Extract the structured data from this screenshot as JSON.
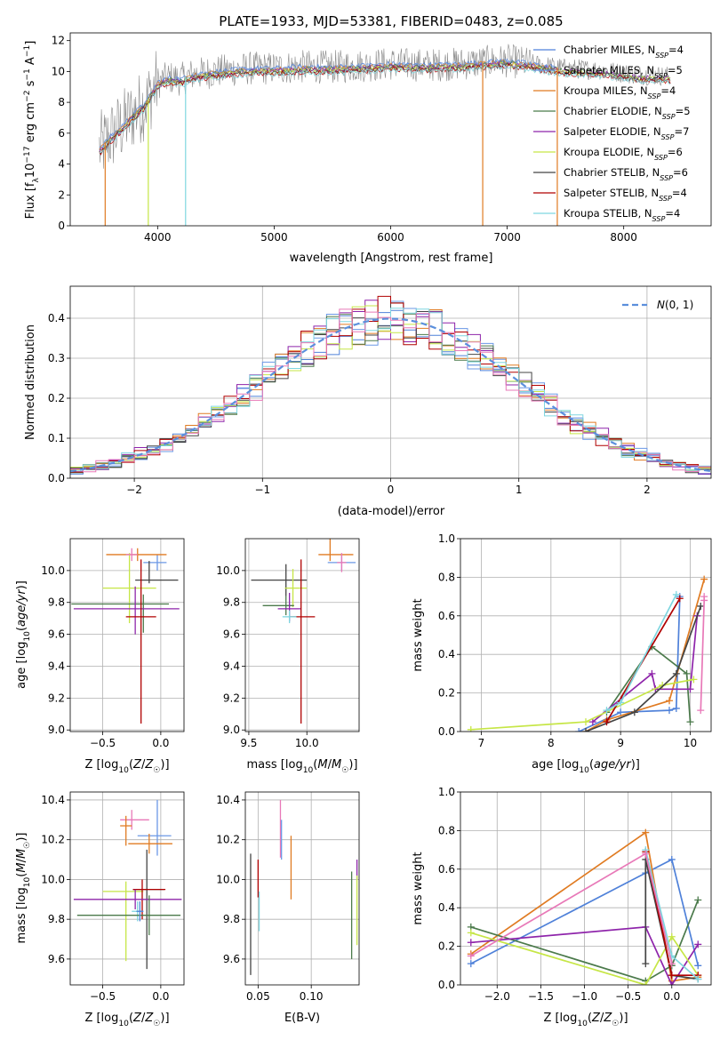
{
  "figure": {
    "title": "PLATE=1933, MJD=53381, FIBERID=0483, z=0.085"
  },
  "colors": {
    "chabrier_miles": "#4f81d9",
    "salpeter_miles": "#6b98e6",
    "kroupa_miles": "#e07b22",
    "chabrier_elodie": "#4b7a4b",
    "salpeter_elodie": "#8e24aa",
    "kroupa_elodie": "#c6e646",
    "chabrier_stelib": "#444444",
    "salpeter_stelib": "#b00000",
    "kroupa_stelib": "#7fd6e0",
    "pink": "#e879b8",
    "data_grey": "#8a8a8a",
    "normal_dash": "#5b8fdc"
  },
  "chart_data": [
    {
      "id": "spectrum",
      "type": "line",
      "xlabel": "wavelength [Angstrom, rest frame]",
      "ylabel": "Flux [f_λ 10^-17 erg cm^-2 s^-1 A^-1]",
      "xlim": [
        3250,
        8750
      ],
      "ylim": [
        0,
        12.5
      ],
      "xticks": [
        4000,
        5000,
        6000,
        7000,
        8000
      ],
      "yticks": [
        0,
        2,
        4,
        6,
        8,
        10,
        12
      ],
      "grid": false,
      "legend_position": "right",
      "legend": [
        {
          "label": "Chabrier MILES, N_SSP=4",
          "color_key": "chabrier_miles"
        },
        {
          "label": "Salpeter MILES, N_SSP=5",
          "color_key": "salpeter_miles"
        },
        {
          "label": "Kroupa MILES, N_SSP=4",
          "color_key": "kroupa_miles"
        },
        {
          "label": "Chabrier ELODIE, N_SSP=5",
          "color_key": "chabrier_elodie"
        },
        {
          "label": "Salpeter ELODIE, N_SSP=7",
          "color_key": "salpeter_elodie"
        },
        {
          "label": "Kroupa ELODIE, N_SSP=6",
          "color_key": "kroupa_elodie"
        },
        {
          "label": "Chabrier STELIB, N_SSP=6",
          "color_key": "chabrier_stelib"
        },
        {
          "label": "Salpeter STELIB, N_SSP=4",
          "color_key": "salpeter_stelib"
        },
        {
          "label": "Kroupa STELIB, N_SSP=4",
          "color_key": "kroupa_stelib"
        }
      ],
      "data_envelope": {
        "x": [
          3500,
          3600,
          3700,
          3800,
          3900,
          4000,
          4100,
          4200,
          4300,
          4500,
          4800,
          5000,
          5200,
          5500,
          5800,
          6000,
          6300,
          6600,
          7000,
          7300,
          7500,
          7800,
          8100,
          8400
        ],
        "y": [
          5.0,
          5.8,
          6.5,
          7.3,
          8.0,
          9.3,
          9.6,
          9.5,
          9.8,
          10.0,
          10.2,
          10.2,
          10.3,
          10.3,
          10.4,
          10.5,
          10.4,
          10.5,
          10.7,
          10.4,
          10.2,
          10.1,
          9.8,
          9.7
        ],
        "noise_amplitude": 1.1
      },
      "drops": [
        {
          "x": 3550,
          "color_key": "kroupa_miles"
        },
        {
          "x": 3920,
          "color_key": "kroupa_elodie"
        },
        {
          "x": 4240,
          "color_key": "kroupa_stelib"
        },
        {
          "x": 6790,
          "color_key": "kroupa_miles"
        },
        {
          "x": 7430,
          "color_key": "kroupa_miles"
        }
      ]
    },
    {
      "id": "residuals",
      "type": "histogram",
      "xlabel": "(data-model)/error",
      "ylabel": "Normed distribution",
      "xlim": [
        -2.5,
        2.5
      ],
      "ylim": [
        0,
        0.48
      ],
      "xticks": [
        -2,
        -1,
        0,
        1,
        2
      ],
      "yticks": [
        0.0,
        0.1,
        0.2,
        0.3,
        0.4
      ],
      "grid": true,
      "legend_position": "top-right",
      "legend": [
        {
          "label": "N(0, 1)",
          "style": "dashed",
          "color_key": "normal_dash"
        }
      ],
      "bin_width": 0.1,
      "gaussian": {
        "mean": 0,
        "sigma": 1
      }
    },
    {
      "id": "age_vs_Z",
      "type": "scatter",
      "xlabel": "Z [log10(Z/Z☉)]",
      "ylabel": "age  [log10(age/yr)]",
      "xlim": [
        -0.78,
        0.2
      ],
      "ylim": [
        8.99,
        10.2
      ],
      "xticks": [
        -0.5,
        0.0
      ],
      "yticks": [
        9.0,
        9.2,
        9.4,
        9.6,
        9.8,
        10.0
      ],
      "grid": true,
      "points": [
        {
          "x": -0.03,
          "y": 10.05,
          "xerr": [
            0.12,
            0.08
          ],
          "yerr": [
            0.05,
            0.05
          ],
          "color_key": "salpeter_miles"
        },
        {
          "x": -0.2,
          "y": 10.1,
          "xerr": [
            0.27,
            0.25
          ],
          "yerr": [
            0.04,
            0.04
          ],
          "color_key": "kroupa_miles"
        },
        {
          "x": -0.1,
          "y": 9.94,
          "xerr": [
            0.12,
            0.25
          ],
          "yerr": [
            0.02,
            0.12
          ],
          "color_key": "chabrier_stelib"
        },
        {
          "x": -0.27,
          "y": 9.89,
          "xerr": [
            0.23,
            0.23
          ],
          "yerr": [
            0.22,
            0.22
          ],
          "color_key": "kroupa_elodie"
        },
        {
          "x": -0.15,
          "y": 9.79,
          "xerr": [
            0.62,
            0.22
          ],
          "yerr": [
            0.18,
            0.06
          ],
          "color_key": "chabrier_elodie"
        },
        {
          "x": -0.22,
          "y": 9.76,
          "xerr": [
            0.53,
            0.38
          ],
          "yerr": [
            0.16,
            0.14
          ],
          "color_key": "salpeter_elodie"
        },
        {
          "x": -0.17,
          "y": 9.71,
          "xerr": [
            0.13,
            0.13
          ],
          "yerr": [
            0.67,
            0.36
          ],
          "color_key": "salpeter_stelib"
        },
        {
          "x": -0.25,
          "y": 10.1,
          "xerr": [
            0.05,
            0.05
          ],
          "yerr": [
            0.04,
            0.04
          ],
          "color_key": "pink"
        }
      ]
    },
    {
      "id": "age_vs_mass",
      "type": "scatter",
      "xlabel": "mass [log10(M/M☉)]",
      "ylabel": "",
      "xlim": [
        9.47,
        10.45
      ],
      "ylim": [
        8.99,
        10.2
      ],
      "xticks": [
        9.5,
        10.0
      ],
      "yticks": [
        9.0,
        9.2,
        9.4,
        9.6,
        9.8,
        10.0
      ],
      "grid": true,
      "points": [
        {
          "x": 10.3,
          "y": 10.05,
          "xerr": [
            0.12,
            0.12
          ],
          "yerr": [
            0.05,
            0.05
          ],
          "color_key": "salpeter_miles"
        },
        {
          "x": 10.2,
          "y": 10.1,
          "xerr": [
            0.1,
            0.2
          ],
          "yerr": [
            0.04,
            0.1
          ],
          "color_key": "kroupa_miles"
        },
        {
          "x": 9.82,
          "y": 9.94,
          "xerr": [
            0.3,
            0.18
          ],
          "yerr": [
            0.1,
            0.1
          ],
          "color_key": "chabrier_stelib"
        },
        {
          "x": 9.88,
          "y": 9.89,
          "xerr": [
            0.07,
            0.12
          ],
          "yerr": [
            0.12,
            0.12
          ],
          "color_key": "kroupa_elodie"
        },
        {
          "x": 9.82,
          "y": 9.78,
          "xerr": [
            0.2,
            0.07
          ],
          "yerr": [
            0.06,
            0.06
          ],
          "color_key": "chabrier_elodie"
        },
        {
          "x": 9.85,
          "y": 9.76,
          "xerr": [
            0.1,
            0.1
          ],
          "yerr": [
            0.08,
            0.1
          ],
          "color_key": "salpeter_elodie"
        },
        {
          "x": 9.95,
          "y": 9.71,
          "xerr": [
            0.1,
            0.12
          ],
          "yerr": [
            0.67,
            0.36
          ],
          "color_key": "salpeter_stelib"
        },
        {
          "x": 9.85,
          "y": 9.71,
          "xerr": [
            0.06,
            0.06
          ],
          "yerr": [
            0.04,
            0.04
          ],
          "color_key": "kroupa_stelib"
        },
        {
          "x": 10.3,
          "y": 10.05,
          "xerr": [
            0.04,
            0.04
          ],
          "yerr": [
            0.06,
            0.06
          ],
          "color_key": "pink"
        }
      ]
    },
    {
      "id": "mass_weight_vs_age",
      "type": "line",
      "xlabel": "age  [log10(age/yr)]",
      "ylabel": "mass weight",
      "xlim": [
        6.7,
        10.3
      ],
      "ylim": [
        0,
        1.0
      ],
      "xticks": [
        7,
        8,
        9,
        10
      ],
      "yticks": [
        0.0,
        0.2,
        0.4,
        0.6,
        0.8,
        1.0
      ],
      "grid": true,
      "series": [
        {
          "color_key": "chabrier_miles",
          "x": [
            8.4,
            9.0,
            9.7,
            9.8,
            9.85
          ],
          "y": [
            0.0,
            0.1,
            0.11,
            0.12,
            0.7
          ]
        },
        {
          "color_key": "kroupa_miles",
          "x": [
            8.5,
            8.8,
            9.7,
            10.2
          ],
          "y": [
            0.0,
            0.06,
            0.16,
            0.79
          ]
        },
        {
          "color_key": "chabrier_elodie",
          "x": [
            8.8,
            9.45,
            9.95,
            10.0
          ],
          "y": [
            0.1,
            0.44,
            0.3,
            0.05
          ]
        },
        {
          "color_key": "salpeter_elodie",
          "x": [
            8.6,
            9.45,
            9.5,
            10.0,
            10.1
          ],
          "y": [
            0.05,
            0.3,
            0.22,
            0.22,
            0.6
          ]
        },
        {
          "color_key": "kroupa_elodie",
          "x": [
            6.85,
            8.5,
            9.6,
            10.05
          ],
          "y": [
            0.01,
            0.05,
            0.24,
            0.27
          ]
        },
        {
          "color_key": "chabrier_stelib",
          "x": [
            8.5,
            9.2,
            9.8,
            10.15
          ],
          "y": [
            0.0,
            0.1,
            0.3,
            0.65
          ]
        },
        {
          "color_key": "salpeter_stelib",
          "x": [
            8.8,
            9.85
          ],
          "y": [
            0.05,
            0.69
          ]
        },
        {
          "color_key": "kroupa_stelib",
          "x": [
            8.8,
            9.0,
            9.8
          ],
          "y": [
            0.11,
            0.15,
            0.71
          ]
        },
        {
          "color_key": "pink",
          "x": [
            10.15,
            10.2,
            10.2
          ],
          "y": [
            0.11,
            0.68,
            0.7
          ]
        }
      ]
    },
    {
      "id": "mass_vs_Z",
      "type": "scatter",
      "xlabel": "Z [log10(Z/Z☉)]",
      "ylabel": "mass [log10(M/M☉)]",
      "xlim": [
        -0.78,
        0.2
      ],
      "ylim": [
        9.47,
        10.44
      ],
      "xticks": [
        -0.5,
        0.0
      ],
      "yticks": [
        9.6,
        9.8,
        10.0,
        10.2,
        10.4
      ],
      "grid": true,
      "points": [
        {
          "x": -0.25,
          "y": 10.3,
          "xerr": [
            0.1,
            0.15
          ],
          "yerr": [
            0.05,
            0.05
          ],
          "color_key": "pink"
        },
        {
          "x": -0.03,
          "y": 10.22,
          "xerr": [
            0.17,
            0.12
          ],
          "yerr": [
            0.1,
            0.18
          ],
          "color_key": "salpeter_miles"
        },
        {
          "x": -0.3,
          "y": 10.27,
          "xerr": [
            0.05,
            0.05
          ],
          "yerr": [
            0.1,
            0.05
          ],
          "color_key": "kroupa_miles"
        },
        {
          "x": -0.1,
          "y": 10.18,
          "xerr": [
            0.18,
            0.2
          ],
          "yerr": [
            0.05,
            0.05
          ],
          "color_key": "kroupa_miles"
        },
        {
          "x": -0.3,
          "y": 9.94,
          "xerr": [
            0.2,
            0.15
          ],
          "yerr": [
            0.35,
            0.05
          ],
          "color_key": "kroupa_elodie"
        },
        {
          "x": -0.12,
          "y": 9.95,
          "xerr": [
            0.12,
            0.15
          ],
          "yerr": [
            0.4,
            0.2
          ],
          "color_key": "chabrier_stelib"
        },
        {
          "x": -0.16,
          "y": 9.95,
          "xerr": [
            0.08,
            0.2
          ],
          "yerr": [
            0.15,
            0.05
          ],
          "color_key": "salpeter_stelib"
        },
        {
          "x": -0.22,
          "y": 9.9,
          "xerr": [
            0.53,
            0.4
          ],
          "yerr": [
            0.05,
            0.05
          ],
          "color_key": "salpeter_elodie"
        },
        {
          "x": -0.2,
          "y": 9.84,
          "xerr": [
            0.05,
            0.05
          ],
          "yerr": [
            0.05,
            0.05
          ],
          "color_key": "kroupa_stelib"
        },
        {
          "x": -0.1,
          "y": 9.82,
          "xerr": [
            0.62,
            0.27
          ],
          "yerr": [
            0.1,
            0.1
          ],
          "color_key": "chabrier_elodie"
        },
        {
          "x": -0.18,
          "y": 9.84,
          "xerr": [
            0.03,
            0.03
          ],
          "yerr": [
            0.05,
            0.05
          ],
          "color_key": "chabrier_miles"
        }
      ]
    },
    {
      "id": "mass_vs_ebv",
      "type": "scatter",
      "xlabel": "E(B-V)",
      "ylabel": "",
      "xlim": [
        0.038,
        0.145
      ],
      "ylim": [
        9.47,
        10.44
      ],
      "xticks": [
        0.05,
        0.1
      ],
      "yticks": [
        9.6,
        9.8,
        10.0,
        10.2,
        10.4
      ],
      "grid": true,
      "points": [
        {
          "x": 0.043,
          "y": 9.95,
          "xerr": [
            0,
            0
          ],
          "yerr": [
            0.43,
            0.18
          ],
          "color_key": "chabrier_stelib"
        },
        {
          "x": 0.05,
          "y": 9.97,
          "xerr": [
            0,
            0
          ],
          "yerr": [
            0.06,
            0.13
          ],
          "color_key": "salpeter_stelib"
        },
        {
          "x": 0.051,
          "y": 9.84,
          "xerr": [
            0,
            0
          ],
          "yerr": [
            0.1,
            0.1
          ],
          "color_key": "kroupa_stelib"
        },
        {
          "x": 0.071,
          "y": 10.3,
          "xerr": [
            0,
            0
          ],
          "yerr": [
            0.19,
            0.1
          ],
          "color_key": "pink"
        },
        {
          "x": 0.072,
          "y": 10.2,
          "xerr": [
            0,
            0
          ],
          "yerr": [
            0.1,
            0.1
          ],
          "color_key": "salpeter_miles"
        },
        {
          "x": 0.081,
          "y": 10.08,
          "xerr": [
            0,
            0
          ],
          "yerr": [
            0.18,
            0.14
          ],
          "color_key": "kroupa_miles"
        },
        {
          "x": 0.138,
          "y": 9.82,
          "xerr": [
            0,
            0
          ],
          "yerr": [
            0.22,
            0.22
          ],
          "color_key": "chabrier_elodie"
        },
        {
          "x": 0.143,
          "y": 10.05,
          "xerr": [
            0,
            0
          ],
          "yerr": [
            0.05,
            0.05
          ],
          "color_key": "salpeter_elodie"
        },
        {
          "x": 0.143,
          "y": 9.82,
          "xerr": [
            0,
            0
          ],
          "yerr": [
            0.15,
            0.2
          ],
          "color_key": "kroupa_elodie"
        }
      ]
    },
    {
      "id": "mass_weight_vs_Z",
      "type": "line",
      "xlabel": "Z [log10(Z/Z☉)]",
      "ylabel": "mass weight",
      "xlim": [
        -2.42,
        0.45
      ],
      "ylim": [
        0,
        1.0
      ],
      "xticks": [
        -2.0,
        -1.5,
        -1.0,
        -0.5,
        0.0
      ],
      "yticks": [
        0.0,
        0.2,
        0.4,
        0.6,
        0.8,
        1.0
      ],
      "grid": true,
      "series": [
        {
          "color_key": "chabrier_miles",
          "x": [
            -2.3,
            -0.3,
            0.0,
            0.3
          ],
          "y": [
            0.11,
            0.58,
            0.65,
            0.1
          ]
        },
        {
          "color_key": "kroupa_miles",
          "x": [
            -2.3,
            -0.3,
            0.0,
            0.3
          ],
          "y": [
            0.16,
            0.79,
            0.02,
            0.04
          ]
        },
        {
          "color_key": "chabrier_elodie",
          "x": [
            -2.3,
            -0.3,
            0.0,
            0.3
          ],
          "y": [
            0.3,
            0.02,
            0.1,
            0.44
          ]
        },
        {
          "color_key": "salpeter_elodie",
          "x": [
            -2.3,
            -0.3,
            0.0,
            0.3
          ],
          "y": [
            0.22,
            0.3,
            0.0,
            0.21
          ]
        },
        {
          "color_key": "kroupa_elodie",
          "x": [
            -2.3,
            -0.3,
            0.0,
            0.3
          ],
          "y": [
            0.27,
            0.0,
            0.25,
            0.05
          ]
        },
        {
          "color_key": "chabrier_stelib",
          "x": [
            -0.3,
            -0.3,
            0.0,
            0.3
          ],
          "y": [
            0.11,
            0.65,
            0.05,
            0.03
          ]
        },
        {
          "color_key": "salpeter_stelib",
          "x": [
            -0.3,
            0.0,
            0.3
          ],
          "y": [
            0.69,
            0.05,
            0.05
          ]
        },
        {
          "color_key": "kroupa_stelib",
          "x": [
            -0.3,
            0.0,
            0.3
          ],
          "y": [
            0.7,
            0.15,
            0.03
          ]
        },
        {
          "color_key": "pink",
          "x": [
            -2.3,
            -0.3,
            0.0
          ],
          "y": [
            0.15,
            0.68,
            0.11
          ]
        }
      ]
    }
  ]
}
